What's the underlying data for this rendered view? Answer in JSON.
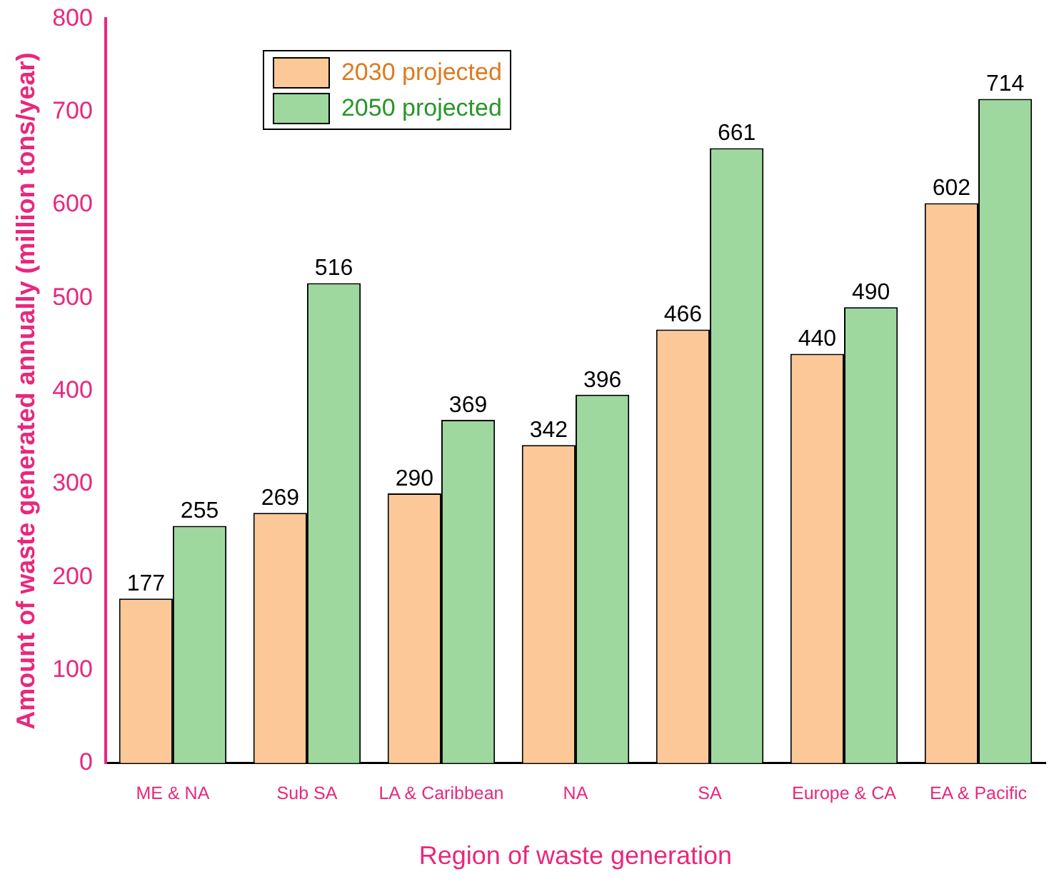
{
  "chart_data": {
    "type": "bar",
    "xlabel": "Region of waste generation",
    "ylabel": "Amount of waste generated annually (million tons/year)",
    "categories": [
      "ME & NA",
      "Sub SA",
      "LA & Caribbean",
      "NA",
      "SA",
      "Europe & CA",
      "EA & Pacific"
    ],
    "series": [
      {
        "name": "2030 projected",
        "color": "#fcc898",
        "values": [
          177,
          269,
          290,
          342,
          466,
          440,
          602
        ]
      },
      {
        "name": "2050 projected",
        "color": "#9ed89e",
        "values": [
          255,
          516,
          369,
          396,
          661,
          490,
          714
        ]
      }
    ],
    "ylim": [
      0,
      800
    ],
    "yticks": [
      0,
      100,
      200,
      300,
      400,
      500,
      600,
      700,
      800
    ],
    "grid": false,
    "legend": "top left",
    "data_labels": true
  }
}
